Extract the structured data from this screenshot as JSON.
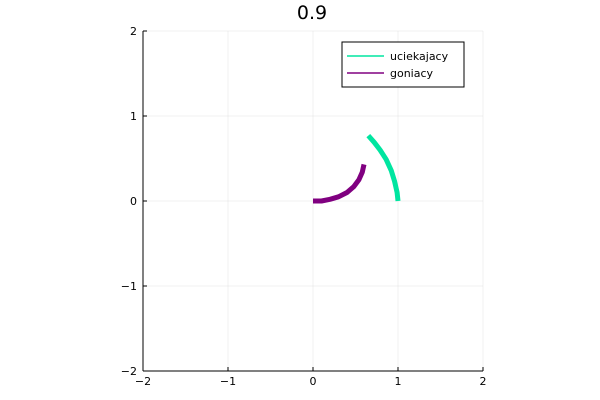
{
  "chart_data": {
    "type": "line",
    "title": "0.9",
    "xlabel": "",
    "ylabel": "",
    "xlim": [
      -2,
      2
    ],
    "ylim": [
      -2,
      2
    ],
    "xticks": [
      -2,
      -1,
      0,
      1,
      2
    ],
    "yticks": [
      -2,
      -1,
      0,
      1,
      2
    ],
    "xtick_labels": [
      "−2",
      "−1",
      "0",
      "1",
      "2"
    ],
    "ytick_labels": [
      "−2",
      "−1",
      "0",
      "1",
      "2"
    ],
    "grid": true,
    "legend_position": "top-right",
    "series": [
      {
        "name": "uciekajacy",
        "color": "#00e5a0",
        "x": [
          1.0,
          0.99,
          0.96,
          0.92,
          0.86,
          0.79,
          0.72,
          0.65
        ],
        "y": [
          0.0,
          0.1,
          0.23,
          0.36,
          0.49,
          0.6,
          0.69,
          0.77
        ]
      },
      {
        "name": "goniacy",
        "color": "#800080",
        "x": [
          0.0,
          0.1,
          0.2,
          0.3,
          0.4,
          0.48,
          0.54,
          0.58,
          0.6
        ],
        "y": [
          0.0,
          0.0,
          0.02,
          0.05,
          0.1,
          0.17,
          0.25,
          0.34,
          0.43
        ]
      }
    ]
  }
}
